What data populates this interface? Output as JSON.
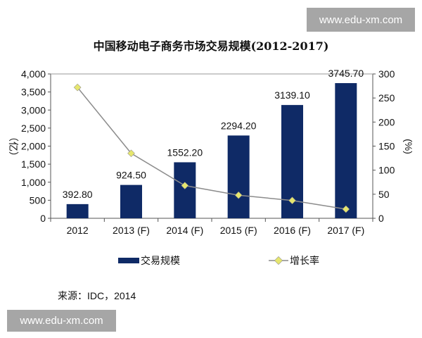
{
  "watermark": "www.edu-xm.com",
  "chart_data": {
    "type": "bar+line",
    "title": "中国移动电子商务市场交易规模(2012-2017)",
    "categories": [
      "2012",
      "2013 (F)",
      "2014 (F)",
      "2015 (F)",
      "2016 (F)",
      "2017 (F)"
    ],
    "series": [
      {
        "name": "交易规模",
        "type": "bar",
        "axis": "left",
        "color": "#0f2a66",
        "values": [
          392.8,
          924.5,
          1552.2,
          2294.2,
          3139.1,
          3745.7
        ],
        "labels": [
          "392.80",
          "924.50",
          "1552.20",
          "2294.20",
          "3139.10",
          "3745.70"
        ]
      },
      {
        "name": "增长率",
        "type": "line",
        "axis": "right",
        "color": "#e6e66e",
        "line_color": "#8c8c8c",
        "values": [
          272,
          135,
          68,
          48,
          37,
          19
        ]
      }
    ],
    "ylabel": "（亿）",
    "y2label": "(%)",
    "ylim": [
      0,
      4000
    ],
    "y2lim": [
      0,
      300
    ],
    "yticks": [
      "0",
      "500",
      "1,000",
      "1,500",
      "2,000",
      "2,500",
      "3,000",
      "3,500",
      "4,000"
    ],
    "y2ticks": [
      "0",
      "50",
      "100",
      "150",
      "200",
      "250",
      "300"
    ],
    "grid": false,
    "legend": "bottom"
  },
  "source": "来源：IDC，2014"
}
